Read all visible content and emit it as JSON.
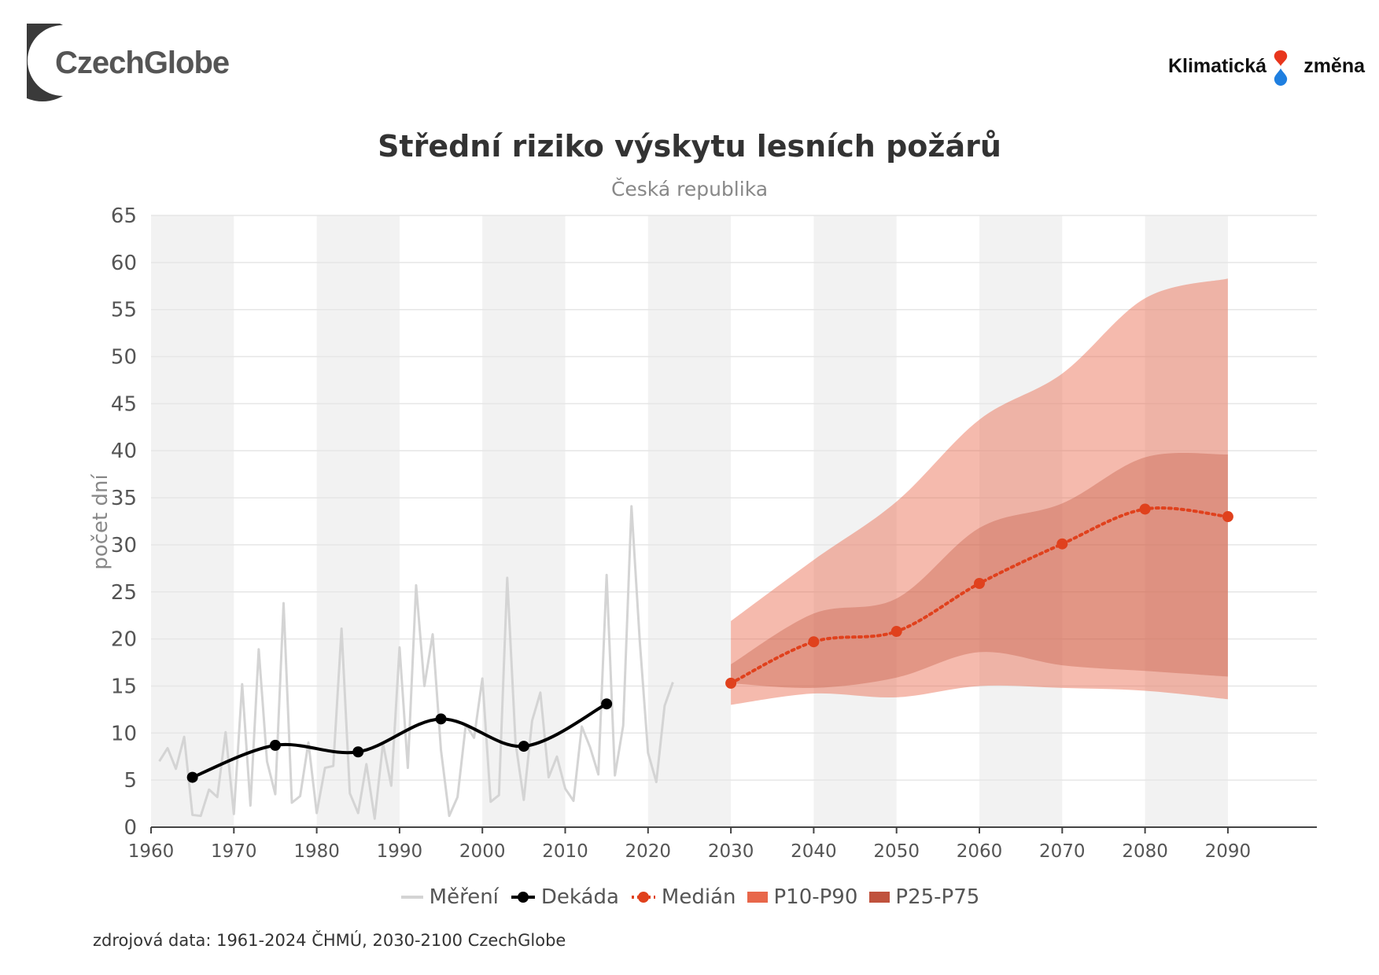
{
  "logos": {
    "left": "CzechGlobe",
    "right_part1": "Klimatická",
    "right_part2": "změna"
  },
  "source_note": "zdrojová data: 1961-2024 ČHMÚ, 2030-2100 CzechGlobe",
  "colors": {
    "measured": "#d4d4d4",
    "decade": "#000000",
    "median": "#e0411d",
    "p10_p90": "#e8674a",
    "p25_p75": "#c0523d",
    "band_stripe": "#f2f2f2",
    "grid": "#e6e6e6"
  },
  "chart_data": {
    "type": "line",
    "title": "Střední riziko výskytu lesních požárů",
    "subtitle": "Česká republika",
    "ylabel": "počet dní",
    "xlabel": "",
    "xlim": [
      1960,
      2100
    ],
    "ylim": [
      0,
      65
    ],
    "yticks": [
      0,
      5,
      10,
      15,
      20,
      25,
      30,
      35,
      40,
      45,
      50,
      55,
      60,
      65
    ],
    "xticks": [
      1960,
      1970,
      1980,
      1990,
      2000,
      2010,
      2020,
      2030,
      2040,
      2050,
      2060,
      2070,
      2080,
      2090
    ],
    "grid": true,
    "legend_position": "bottom",
    "legend": [
      "Měření",
      "Dekáda",
      "Medián",
      "P10-P90",
      "P25-P75"
    ],
    "series": [
      {
        "name": "Měření",
        "type": "line",
        "x": [
          1961,
          1962,
          1963,
          1964,
          1965,
          1966,
          1967,
          1968,
          1969,
          1970,
          1971,
          1972,
          1973,
          1974,
          1975,
          1976,
          1977,
          1978,
          1979,
          1980,
          1981,
          1982,
          1983,
          1984,
          1985,
          1986,
          1987,
          1988,
          1989,
          1990,
          1991,
          1992,
          1993,
          1994,
          1995,
          1996,
          1997,
          1998,
          1999,
          2000,
          2001,
          2002,
          2003,
          2004,
          2005,
          2006,
          2007,
          2008,
          2009,
          2010,
          2011,
          2012,
          2013,
          2014,
          2015,
          2016,
          2017,
          2018,
          2019,
          2020,
          2021,
          2022,
          2023
        ],
        "y": [
          7,
          8.4,
          6.2,
          9.6,
          1.3,
          1.2,
          4,
          3.2,
          10.1,
          1.4,
          15.2,
          2.3,
          18.9,
          7,
          3.5,
          23.8,
          2.6,
          3.3,
          9,
          1.5,
          6.3,
          6.5,
          21.1,
          3.6,
          1.5,
          6.7,
          0.9,
          8.9,
          4.4,
          19.1,
          6.3,
          25.7,
          15,
          20.5,
          8.2,
          1.2,
          3.2,
          10.9,
          9.5,
          15.8,
          2.7,
          3.4,
          26.5,
          9,
          2.9,
          11.3,
          14.3,
          5.3,
          7.5,
          4.1,
          2.8,
          10.7,
          8.5,
          5.6,
          26.8,
          5.5,
          10.8,
          34.1,
          19.8,
          7.9,
          4.8,
          12.9,
          15.4
        ]
      },
      {
        "name": "Dekáda",
        "type": "line",
        "x": [
          1965,
          1975,
          1985,
          1995,
          2005,
          2015
        ],
        "y": [
          5.3,
          8.7,
          8.0,
          11.5,
          8.6,
          13.1
        ]
      },
      {
        "name": "Medián",
        "type": "line",
        "x": [
          2030,
          2040,
          2050,
          2060,
          2070,
          2080,
          2090
        ],
        "y": [
          15.3,
          19.7,
          20.8,
          25.9,
          30.1,
          33.8,
          33.0
        ]
      },
      {
        "name": "P10-P90",
        "type": "area",
        "x": [
          2030,
          2040,
          2050,
          2060,
          2070,
          2080,
          2090
        ],
        "low": [
          13.0,
          14.2,
          13.8,
          15.0,
          14.8,
          14.5,
          13.6
        ],
        "high": [
          21.9,
          28.4,
          34.6,
          43.3,
          48.2,
          56.2,
          58.3
        ]
      },
      {
        "name": "P25-P75",
        "type": "area",
        "x": [
          2030,
          2040,
          2050,
          2060,
          2070,
          2080,
          2090
        ],
        "low": [
          15.3,
          14.8,
          15.9,
          18.6,
          17.2,
          16.6,
          16.0
        ],
        "high": [
          17.3,
          22.7,
          24.3,
          31.8,
          34.4,
          39.3,
          39.6
        ]
      }
    ]
  }
}
